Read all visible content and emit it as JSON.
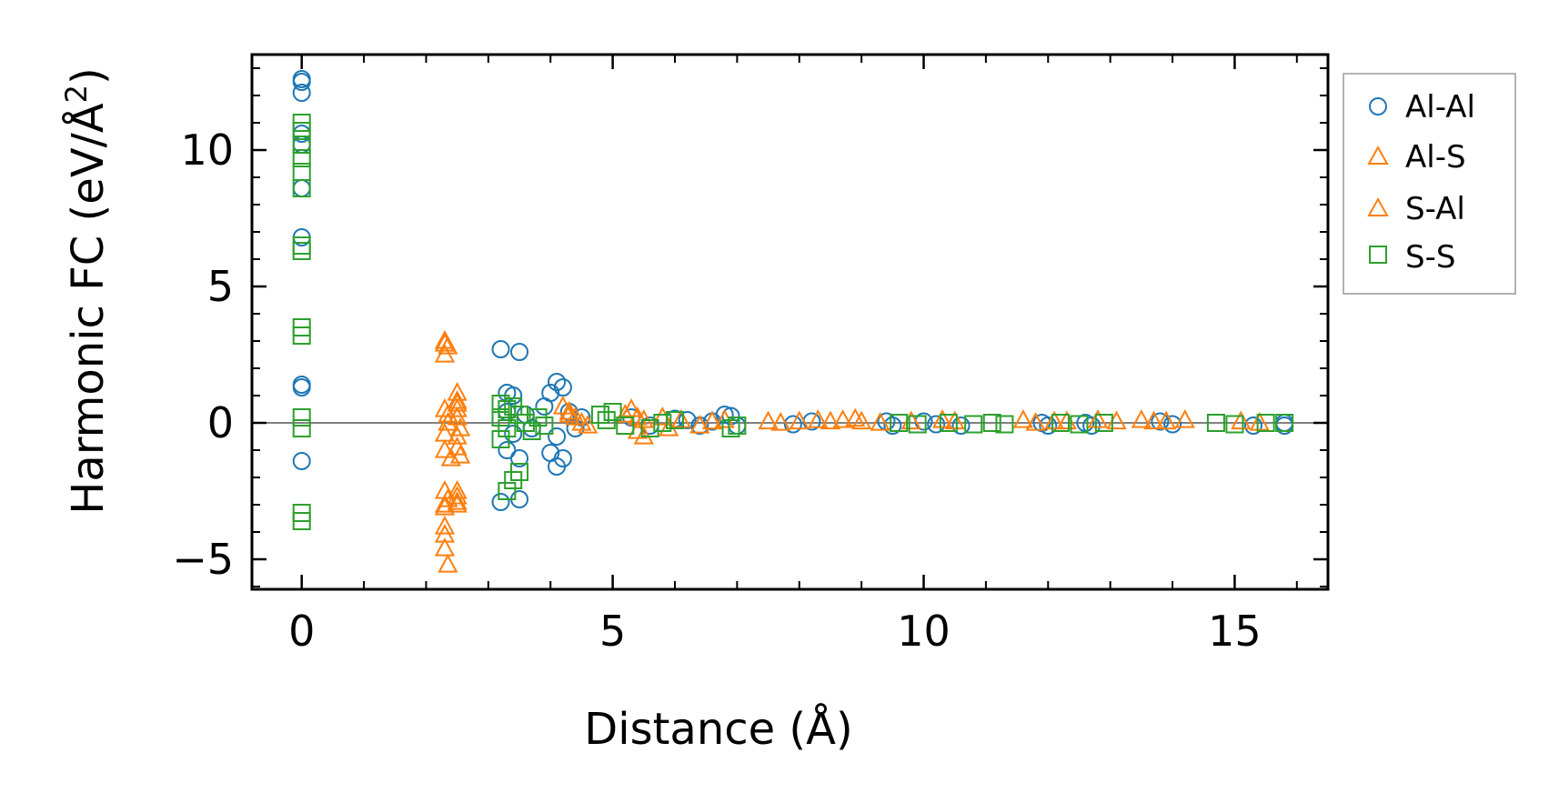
{
  "chart_data": {
    "type": "scatter",
    "title": "",
    "xlabel": "Distance (Å)",
    "ylabel_main": "Harmonic FC (eV/Å",
    "ylabel_sup": "2",
    "ylabel_close": ")",
    "xlim": [
      -0.8,
      16.5
    ],
    "ylim": [
      -6.1,
      13.5
    ],
    "xticks": [
      0,
      5,
      10,
      15
    ],
    "xtick_labels": [
      "0",
      "5",
      "10",
      "15"
    ],
    "yticks": [
      -5,
      0,
      5,
      10
    ],
    "ytick_labels": [
      "−5",
      "0",
      "5",
      "10"
    ],
    "zero_line": true,
    "grid": false,
    "legend_position": "outside-right",
    "series": [
      {
        "name": "Al-Al",
        "marker": "circle",
        "color": "#1f77b4",
        "points": [
          [
            0,
            12.6
          ],
          [
            0,
            12.5
          ],
          [
            0,
            12.1
          ],
          [
            0,
            10.6
          ],
          [
            0,
            10.2
          ],
          [
            0,
            8.6
          ],
          [
            0,
            6.8
          ],
          [
            0,
            1.4
          ],
          [
            0,
            1.3
          ],
          [
            0,
            -1.4
          ],
          [
            3.2,
            2.7
          ],
          [
            3.5,
            2.6
          ],
          [
            3.2,
            -2.9
          ],
          [
            3.5,
            -2.8
          ],
          [
            3.3,
            1.1
          ],
          [
            3.4,
            1.0
          ],
          [
            3.3,
            -1.0
          ],
          [
            3.5,
            -1.3
          ],
          [
            3.3,
            0.4
          ],
          [
            3.4,
            -0.4
          ],
          [
            3.6,
            0.3
          ],
          [
            3.7,
            -0.2
          ],
          [
            4.0,
            1.1
          ],
          [
            4.1,
            1.5
          ],
          [
            4.2,
            1.3
          ],
          [
            4.0,
            -1.1
          ],
          [
            4.1,
            -1.6
          ],
          [
            4.2,
            -1.3
          ],
          [
            3.9,
            0.6
          ],
          [
            4.1,
            -0.5
          ],
          [
            4.3,
            0.4
          ],
          [
            4.5,
            0.2
          ],
          [
            4.4,
            -0.2
          ],
          [
            5.3,
            0.2
          ],
          [
            5.6,
            -0.1
          ],
          [
            6.0,
            0.15
          ],
          [
            6.2,
            0.1
          ],
          [
            6.4,
            -0.1
          ],
          [
            6.6,
            0.05
          ],
          [
            6.8,
            0.3
          ],
          [
            6.9,
            0.25
          ],
          [
            7.0,
            -0.1
          ],
          [
            7.9,
            -0.05
          ],
          [
            8.2,
            0.05
          ],
          [
            9.4,
            0.05
          ],
          [
            9.5,
            -0.1
          ],
          [
            10.0,
            0.05
          ],
          [
            10.2,
            -0.05
          ],
          [
            10.6,
            -0.1
          ],
          [
            11.9,
            0.0
          ],
          [
            12.0,
            -0.1
          ],
          [
            12.6,
            0.0
          ],
          [
            12.7,
            -0.1
          ],
          [
            13.8,
            0.05
          ],
          [
            14.0,
            -0.05
          ],
          [
            15.3,
            -0.1
          ],
          [
            15.8,
            0.0
          ],
          [
            15.8,
            -0.1
          ]
        ]
      },
      {
        "name": "Al-S",
        "marker": "triangle",
        "color": "#ff7f0e",
        "points": [
          [
            2.3,
            3.0
          ],
          [
            2.3,
            2.5
          ],
          [
            2.35,
            2.8
          ],
          [
            2.3,
            -2.5
          ],
          [
            2.3,
            -3.0
          ],
          [
            2.35,
            -2.8
          ],
          [
            2.3,
            -3.8
          ],
          [
            2.3,
            -4.6
          ],
          [
            2.35,
            -5.2
          ],
          [
            2.3,
            0.5
          ],
          [
            2.35,
            0.0
          ],
          [
            2.3,
            -0.4
          ],
          [
            2.3,
            -1.0
          ],
          [
            2.4,
            -1.3
          ],
          [
            2.35,
            0.3
          ],
          [
            2.5,
            1.1
          ],
          [
            2.5,
            0.8
          ],
          [
            2.5,
            0.5
          ],
          [
            2.5,
            0.2
          ],
          [
            2.55,
            -0.2
          ],
          [
            2.5,
            -0.5
          ],
          [
            2.5,
            -0.9
          ],
          [
            2.55,
            -1.2
          ],
          [
            2.5,
            -2.5
          ],
          [
            2.5,
            -2.7
          ],
          [
            2.5,
            -3.0
          ],
          [
            4.2,
            0.6
          ],
          [
            4.3,
            0.4
          ],
          [
            4.4,
            0.2
          ],
          [
            4.5,
            0.0
          ],
          [
            4.6,
            -0.1
          ],
          [
            5.3,
            0.5
          ],
          [
            5.4,
            0.2
          ],
          [
            5.4,
            -0.3
          ],
          [
            5.5,
            -0.5
          ],
          [
            5.8,
            0.2
          ],
          [
            5.9,
            -0.2
          ],
          [
            6.1,
            0.1
          ],
          [
            6.4,
            -0.1
          ],
          [
            6.8,
            0.1
          ],
          [
            7.5,
            0.05
          ],
          [
            7.7,
            0.0
          ],
          [
            8.0,
            0.05
          ],
          [
            8.3,
            0.1
          ],
          [
            8.7,
            0.1
          ],
          [
            8.9,
            0.15
          ],
          [
            9.0,
            0.05
          ],
          [
            9.8,
            0.05
          ],
          [
            10.3,
            0.1
          ],
          [
            11.6,
            0.1
          ],
          [
            11.8,
            0.0
          ],
          [
            12.3,
            0.05
          ],
          [
            12.8,
            0.1
          ],
          [
            13.1,
            0.05
          ],
          [
            13.5,
            0.1
          ],
          [
            13.7,
            0.05
          ],
          [
            14.2,
            0.1
          ],
          [
            15.1,
            0.05
          ],
          [
            15.4,
            0.0
          ]
        ]
      },
      {
        "name": "S-Al",
        "marker": "triangle",
        "color": "#ff7f0e",
        "points": [
          [
            2.3,
            2.9
          ],
          [
            2.3,
            -3.1
          ],
          [
            2.3,
            -4.1
          ],
          [
            2.5,
            -2.9
          ],
          [
            2.5,
            0.7
          ],
          [
            4.3,
            0.3
          ],
          [
            5.2,
            0.3
          ],
          [
            5.5,
            0.1
          ],
          [
            6.6,
            0.05
          ],
          [
            8.5,
            0.05
          ],
          [
            9.3,
            0.0
          ],
          [
            10.5,
            0.05
          ],
          [
            12.1,
            0.05
          ],
          [
            13.9,
            0.05
          ]
        ]
      },
      {
        "name": "S-S",
        "marker": "square",
        "color": "#2ca02c",
        "points": [
          [
            0,
            11.0
          ],
          [
            0,
            10.7
          ],
          [
            0,
            10.2
          ],
          [
            0,
            9.7
          ],
          [
            0,
            9.2
          ],
          [
            0,
            8.6
          ],
          [
            0,
            6.5
          ],
          [
            0,
            6.3
          ],
          [
            0,
            3.5
          ],
          [
            0,
            3.2
          ],
          [
            0,
            0.2
          ],
          [
            0,
            -0.2
          ],
          [
            0,
            -3.3
          ],
          [
            0,
            -3.6
          ],
          [
            3.2,
            0.7
          ],
          [
            3.3,
            0.5
          ],
          [
            3.2,
            0.2
          ],
          [
            3.3,
            -0.2
          ],
          [
            3.2,
            -0.6
          ],
          [
            3.3,
            -2.5
          ],
          [
            3.4,
            -2.1
          ],
          [
            3.5,
            -1.8
          ],
          [
            3.4,
            0.6
          ],
          [
            3.5,
            0.3
          ],
          [
            3.6,
            0.0
          ],
          [
            3.7,
            -0.3
          ],
          [
            3.8,
            0.2
          ],
          [
            3.9,
            -0.1
          ],
          [
            4.8,
            0.3
          ],
          [
            4.9,
            0.1
          ],
          [
            5.0,
            0.4
          ],
          [
            5.2,
            -0.1
          ],
          [
            5.6,
            -0.2
          ],
          [
            5.8,
            0.0
          ],
          [
            6.0,
            0.1
          ],
          [
            6.9,
            -0.2
          ],
          [
            7.0,
            -0.1
          ],
          [
            9.6,
            0.0
          ],
          [
            9.9,
            -0.05
          ],
          [
            10.4,
            0.0
          ],
          [
            10.8,
            -0.05
          ],
          [
            11.1,
            0.0
          ],
          [
            11.3,
            -0.05
          ],
          [
            12.2,
            0.0
          ],
          [
            12.5,
            -0.05
          ],
          [
            12.9,
            0.0
          ],
          [
            14.7,
            0.0
          ],
          [
            15.0,
            -0.05
          ],
          [
            15.5,
            0.0
          ],
          [
            15.8,
            0.0
          ]
        ]
      }
    ]
  }
}
